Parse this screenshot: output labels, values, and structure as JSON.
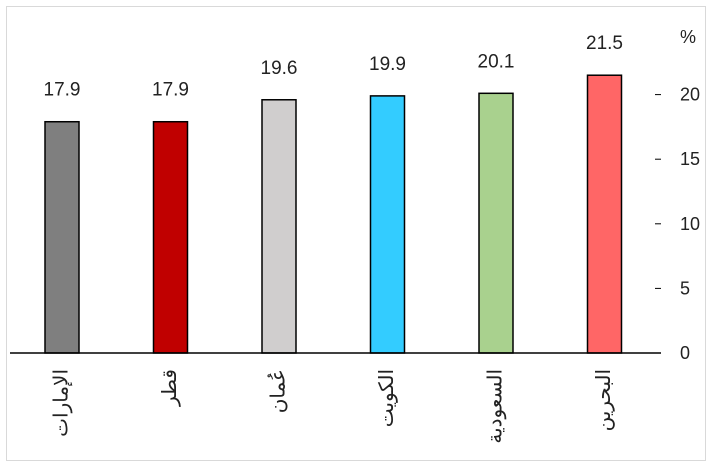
{
  "chart_data": {
    "type": "bar",
    "categories": [
      "الإمارات",
      "قطر",
      "عُمان",
      "الكويت",
      "السعودية",
      "البحرين"
    ],
    "values": [
      17.9,
      17.9,
      19.6,
      19.9,
      20.1,
      21.5
    ],
    "value_labels": [
      "17.9",
      "17.9",
      "19.6",
      "19.9",
      "20.1",
      "21.5"
    ],
    "colors": [
      "#7f7f7f",
      "#c00000",
      "#d0cece",
      "#33ccff",
      "#a9d18e",
      "#ff6666"
    ],
    "unit_label": "%",
    "yticks": [
      0,
      5,
      10,
      15,
      20
    ],
    "ytick_labels": [
      "0",
      "5",
      "10",
      "15",
      "20"
    ],
    "ylim": [
      0,
      25
    ],
    "y_axis_position": "right",
    "grid": false,
    "legend": "none",
    "title": "",
    "xlabel": "",
    "ylabel": ""
  }
}
